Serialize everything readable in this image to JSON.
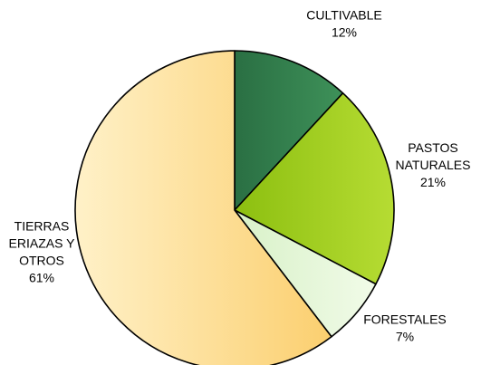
{
  "chart_data": {
    "type": "pie",
    "title": "",
    "slices": [
      {
        "label_lines": [
          "CULTIVABLE"
        ],
        "value": 12,
        "value_label": "12%",
        "color": "#2f7d4a",
        "gradient": [
          "#2a6f43",
          "#3e9159"
        ]
      },
      {
        "label_lines": [
          "PASTOS",
          "NATURALES"
        ],
        "value": 21,
        "value_label": "21%",
        "color": "#9ccc1c",
        "gradient": [
          "#8cbf10",
          "#b6dc33"
        ]
      },
      {
        "label_lines": [
          "FORESTALES"
        ],
        "value": 7,
        "value_label": "7%",
        "color": "#e6f7da",
        "gradient": [
          "#d8f1c8",
          "#f1fbe8"
        ]
      },
      {
        "label_lines": [
          "TIERRAS",
          "ERIAZAS Y",
          "OTROS"
        ],
        "value": 61,
        "value_label": "61%",
        "color": "#fde5a8",
        "gradient": [
          "#fff1c8",
          "#fbcf6f"
        ]
      }
    ],
    "start_angle": "12 o'clock",
    "direction": "clockwise",
    "legend": "none"
  }
}
